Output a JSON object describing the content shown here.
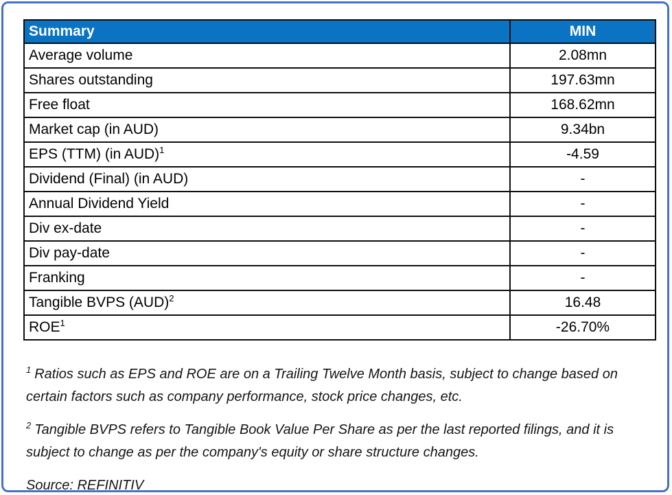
{
  "table": {
    "header": {
      "col1": "Summary",
      "col2": "MIN"
    },
    "rows": [
      {
        "label": "Average volume",
        "sup": "",
        "value": "2.08mn"
      },
      {
        "label": "Shares outstanding",
        "sup": "",
        "value": "197.63mn"
      },
      {
        "label": "Free float",
        "sup": "",
        "value": "168.62mn"
      },
      {
        "label": "Market cap (in AUD)",
        "sup": "",
        "value": "9.34bn"
      },
      {
        "label": "EPS (TTM) (in AUD)",
        "sup": "1",
        "value": "-4.59"
      },
      {
        "label": "Dividend (Final) (in AUD)",
        "sup": "",
        "value": "-"
      },
      {
        "label": "Annual Dividend Yield",
        "sup": "",
        "value": "-"
      },
      {
        "label": "Div ex-date",
        "sup": "",
        "value": "-"
      },
      {
        "label": "Div pay-date",
        "sup": "",
        "value": "-"
      },
      {
        "label": "Franking",
        "sup": "",
        "value": "-"
      },
      {
        "label": "Tangible BVPS (AUD)",
        "sup": "2",
        "value": "16.48"
      },
      {
        "label": "ROE",
        "sup": "1",
        "value": "-26.70%"
      }
    ]
  },
  "footnotes": [
    {
      "sup": "1",
      "text": "Ratios such as EPS and ROE are on a Trailing Twelve Month basis, subject to change based on certain factors such as company performance, stock price changes, etc."
    },
    {
      "sup": "2",
      "text": "Tangible BVPS refers to Tangible Book Value Per Share as per the last reported filings, and it is subject to change as per the company's equity or share structure changes."
    }
  ],
  "source": "Source: REFINITIV",
  "colors": {
    "header_bg": "#0a73c3",
    "header_text": "#ffffff",
    "frame_border": "#4472c4",
    "table_border": "#0d0d0d"
  }
}
